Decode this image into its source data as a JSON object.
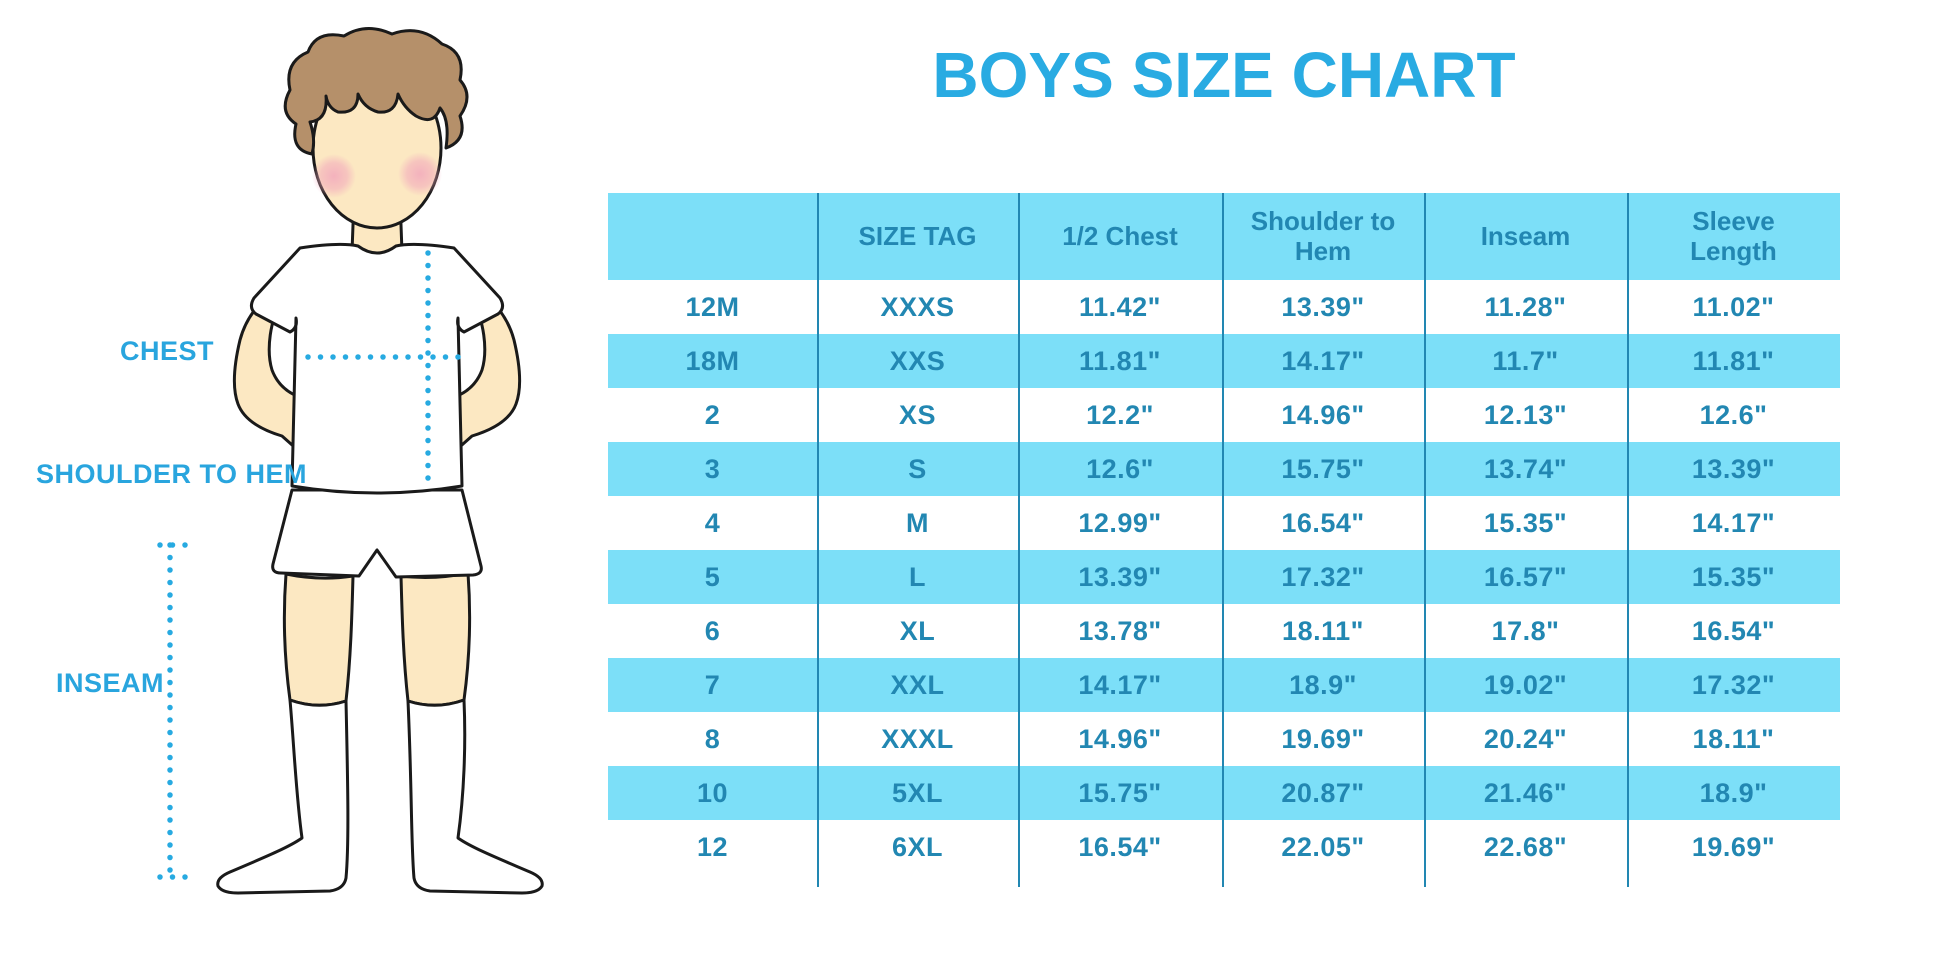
{
  "title": "BOYS SIZE CHART",
  "illustration": {
    "labels": {
      "chest": "CHEST",
      "shoulder_to_hem": "SHOULDER TO HEM",
      "inseam": "INSEAM"
    }
  },
  "colors": {
    "title_blue": "#29ABE2",
    "label_blue": "#29A5DE",
    "band_blue": "#7CDFF8",
    "table_text_blue": "#2287B2",
    "dotted_line_blue": "#27AAE1",
    "skin": "#FCE8C2",
    "hair": "#B5906A",
    "blush": "#F2A8BC",
    "outline": "#1A1A1A"
  },
  "chart_data": {
    "type": "table",
    "title": "BOYS SIZE CHART",
    "columns": [
      "",
      "SIZE TAG",
      "1/2 Chest",
      "Shoulder to Hem",
      "Inseam",
      "Sleeve Length"
    ],
    "rows": [
      [
        "12M",
        "XXXS",
        "11.42\"",
        "13.39\"",
        "11.28\"",
        "11.02\""
      ],
      [
        "18M",
        "XXS",
        "11.81\"",
        "14.17\"",
        "11.7\"",
        "11.81\""
      ],
      [
        "2",
        "XS",
        "12.2\"",
        "14.96\"",
        "12.13\"",
        "12.6\""
      ],
      [
        "3",
        "S",
        "12.6\"",
        "15.75\"",
        "13.74\"",
        "13.39\""
      ],
      [
        "4",
        "M",
        "12.99\"",
        "16.54\"",
        "15.35\"",
        "14.17\""
      ],
      [
        "5",
        "L",
        "13.39\"",
        "17.32\"",
        "16.57\"",
        "15.35\""
      ],
      [
        "6",
        "XL",
        "13.78\"",
        "18.11\"",
        "17.8\"",
        "16.54\""
      ],
      [
        "7",
        "XXL",
        "14.17\"",
        "18.9\"",
        "19.02\"",
        "17.32\""
      ],
      [
        "8",
        "XXXL",
        "14.96\"",
        "19.69\"",
        "20.24\"",
        "18.11\""
      ],
      [
        "10",
        "5XL",
        "15.75\"",
        "20.87\"",
        "21.46\"",
        "18.9\""
      ],
      [
        "12",
        "6XL",
        "16.54\"",
        "22.05\"",
        "22.68\"",
        "19.69\""
      ]
    ]
  }
}
